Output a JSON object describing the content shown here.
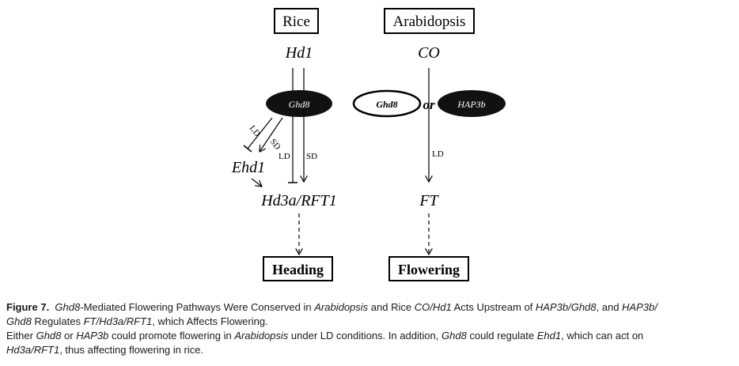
{
  "diagram": {
    "rice_title": "Rice",
    "arabidopsis_title": "Arabidopsis",
    "hd1": "Hd1",
    "co": "CO",
    "ghd8_rice": "Ghd8",
    "ghd8_arab": "Ghd8",
    "or": "or",
    "hap3b": "HAP3b",
    "ld_inhibit": "LD",
    "sd_promote": "SD",
    "ld_hd1": "LD",
    "sd_hd1": "SD",
    "ld_co": "LD",
    "ehd1": "Ehd1",
    "hd3a_rft1": "Hd3a/RFT1",
    "ft": "FT",
    "heading": "Heading",
    "flowering": "Flowering"
  },
  "caption": {
    "fig_label": "Figure 7.",
    "t1": "Ghd8",
    "t2": "-Mediated Flowering Pathways Were Conserved in ",
    "t3": "Arabidopsis",
    "t4": " and Rice ",
    "t5": "CO/Hd1",
    "t6": " Acts Upstream of ",
    "t7": "HAP3b/Ghd8",
    "t8": ", and ",
    "t9": "HAP3b/",
    "t10": "Ghd8",
    "t11": " Regulates ",
    "t12": "FT/Hd3a/RFT1",
    "t13": ", which Affects Flowering.",
    "b1": "Either ",
    "b2": "Ghd8",
    "b3": " or ",
    "b4": "HAP3b",
    "b5": " could promote flowering in ",
    "b6": "Arabidopsis",
    "b7": " under LD conditions. In addition, ",
    "b8": "Ghd8",
    "b9": " could regulate ",
    "b10": "Ehd1",
    "b11": ", which can act on ",
    "b12": "Hd3a/RFT1",
    "b13": ", thus affecting flowering in rice."
  }
}
